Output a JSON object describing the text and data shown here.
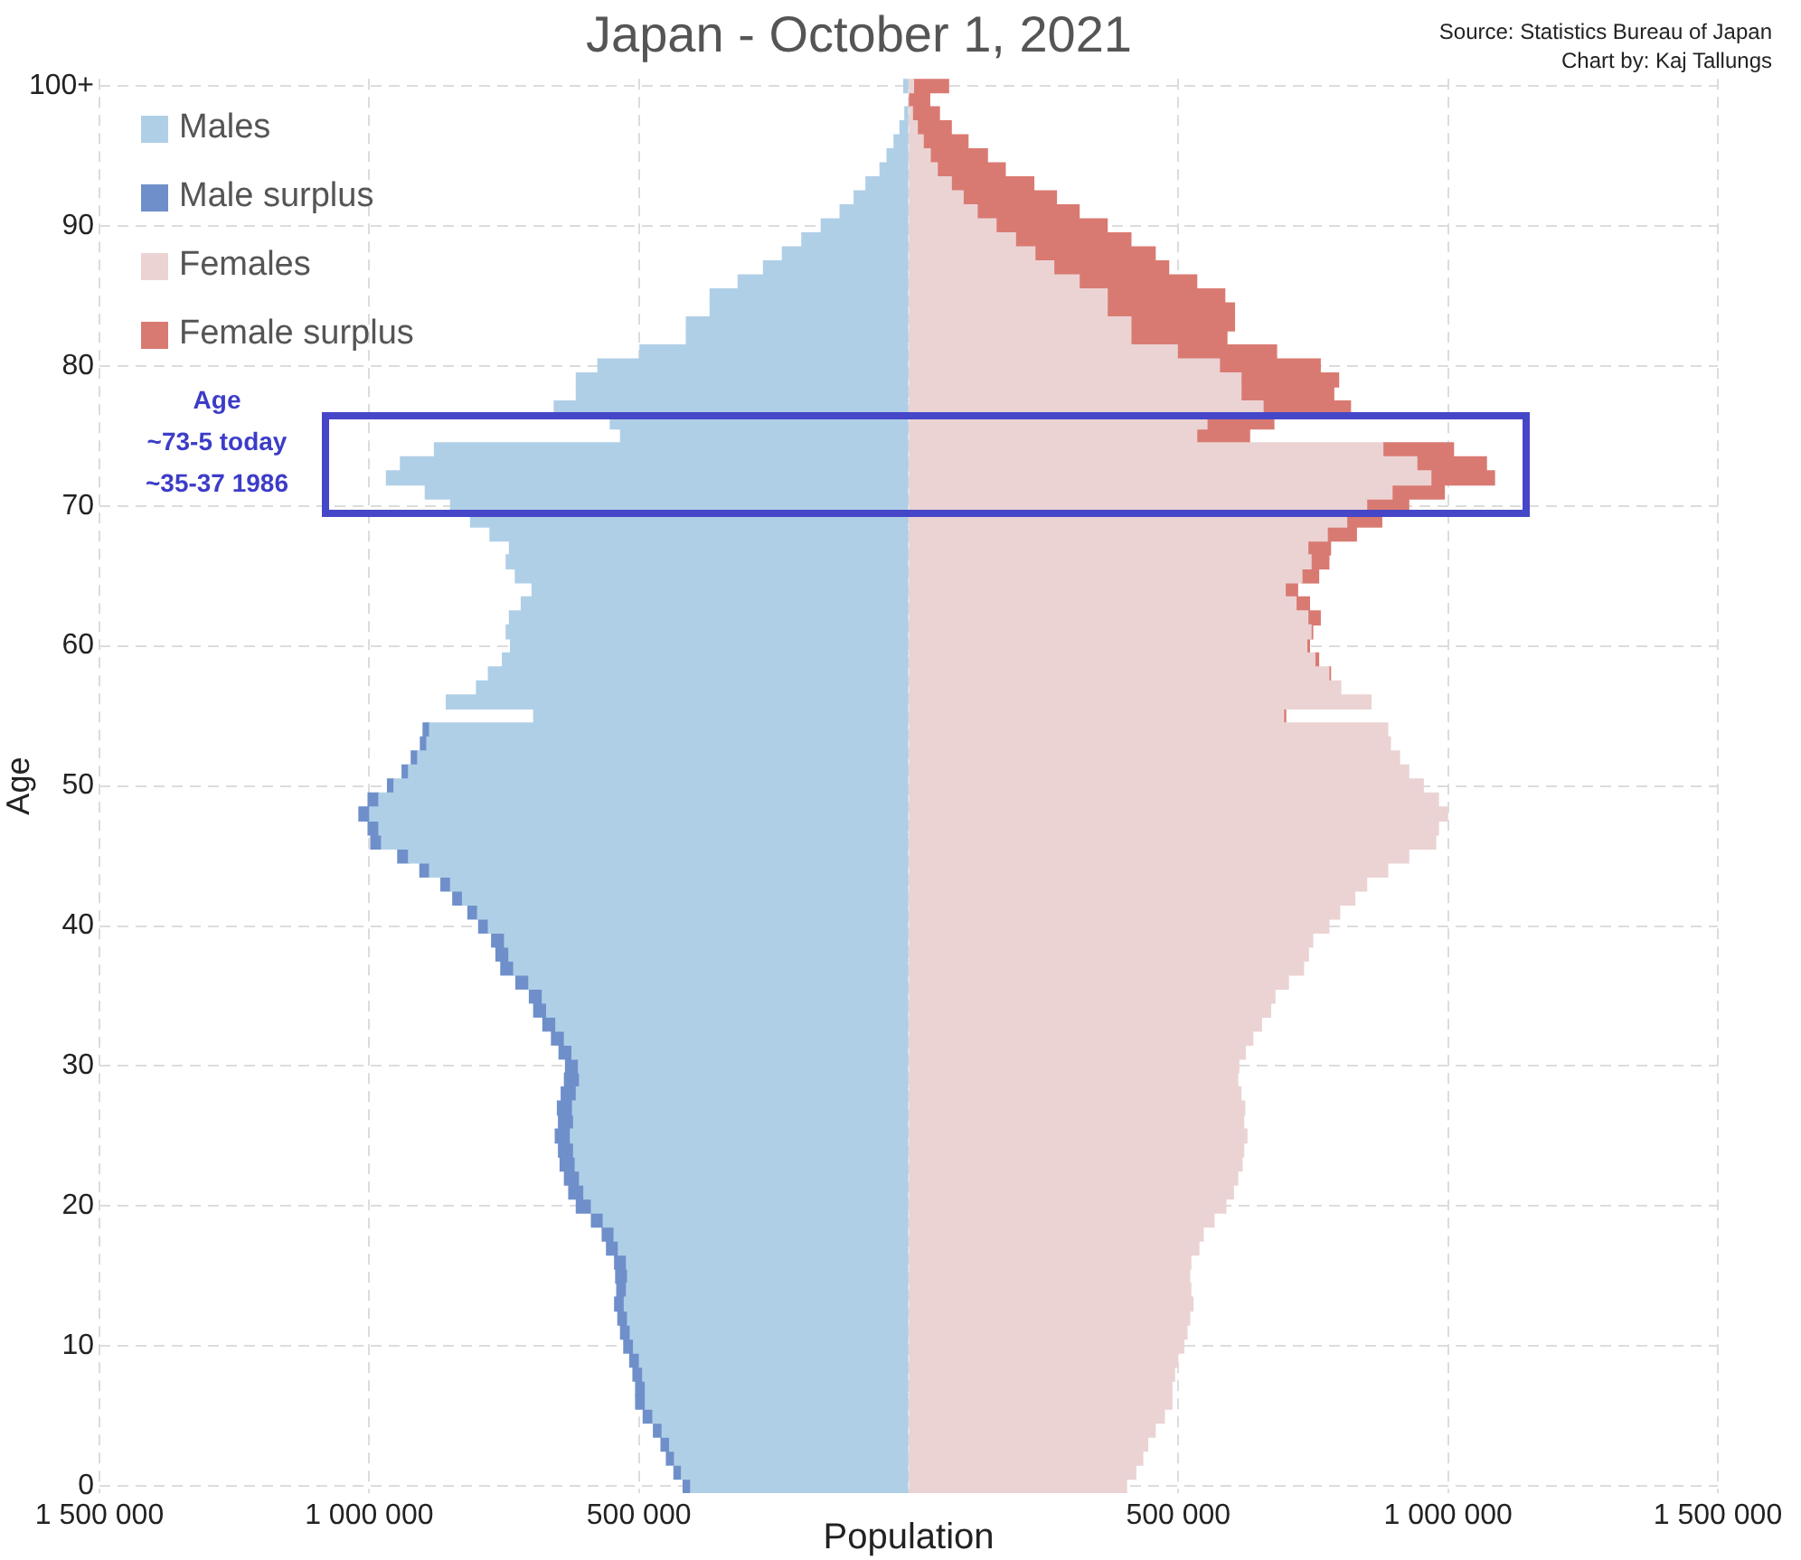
{
  "chart_data": {
    "type": "bar",
    "orientation": "horizontal",
    "stacked": true,
    "title": "Japan - October 1, 2021",
    "xlabel": "Population",
    "ylabel": "Age",
    "annotations": [
      "Source: Statistics Bureau of Japan",
      "Chart by: Kaj Tallungs",
      "Age",
      "~73-5 today",
      "~35-37 1986"
    ],
    "categories": [
      "100+",
      null,
      null,
      null,
      null,
      null,
      null,
      null,
      null,
      null,
      "90",
      null,
      null,
      null,
      null,
      null,
      null,
      null,
      null,
      null,
      "80",
      null,
      null,
      null,
      null,
      null,
      null,
      null,
      null,
      null,
      "70",
      null,
      null,
      null,
      null,
      null,
      null,
      null,
      null,
      null,
      "60",
      null,
      null,
      null,
      null,
      null,
      null,
      null,
      null,
      null,
      "50",
      null,
      null,
      null,
      null,
      null,
      null,
      null,
      null,
      null,
      "40",
      null,
      null,
      null,
      null,
      null,
      null,
      null,
      null,
      null,
      "30",
      null,
      null,
      null,
      null,
      null,
      null,
      null,
      null,
      null,
      "20",
      null,
      null,
      null,
      null,
      null,
      null,
      null,
      null,
      null,
      "10",
      null,
      null,
      null,
      null,
      null,
      null,
      null,
      null,
      null,
      "0"
    ],
    "series": [
      {
        "name": "Males",
        "color": "#afcfe7",
        "values": [
          -9000,
          null,
          -7000,
          -16000,
          -27000,
          -40000,
          -53000,
          -79000,
          -101000,
          -127000,
          -162000,
          -198000,
          -234000,
          -269000,
          -316000,
          -368000,
          -368000,
          -412000,
          -412000,
          -498000,
          -576000,
          -616000,
          -616000,
          -657000,
          -553000,
          -534000,
          -879000,
          -942000,
          -968000,
          -896000,
          -849000,
          -812000,
          -776000,
          -740000,
          -746000,
          -729000,
          -698000,
          -718000,
          -740000,
          -746000,
          -738000,
          -753000,
          -779000,
          -801000,
          -857000,
          -695000,
          -888000,
          -893000,
          -910000,
          -927000,
          -954000,
          -982000,
          -999000,
          -982000,
          -977000,
          -927000,
          -888000,
          -849000,
          -827000,
          -799000,
          -779000,
          -749000,
          -741000,
          -732000,
          -704000,
          -679000,
          -671000,
          -654000,
          -638000,
          -624000,
          -612000,
          -610000,
          -616000,
          -623000,
          -621000,
          -627000,
          -621000,
          -618000,
          -610000,
          -602000,
          -588000,
          -566000,
          -546000,
          -538000,
          -523000,
          -521000,
          -523000,
          -527000,
          -521000,
          -516000,
          -510000,
          -499000,
          -493000,
          -488000,
          -488000,
          -474000,
          -457000,
          -443000,
          -434000,
          -421000,
          -404000
        ]
      },
      {
        "name": "Male surplus",
        "color": "#6f8fca",
        "values": [
          null,
          null,
          null,
          null,
          null,
          null,
          null,
          null,
          null,
          null,
          null,
          null,
          null,
          null,
          null,
          null,
          null,
          null,
          null,
          null,
          null,
          null,
          null,
          null,
          null,
          null,
          null,
          null,
          null,
          null,
          null,
          null,
          null,
          null,
          null,
          null,
          null,
          null,
          null,
          null,
          null,
          null,
          null,
          null,
          null,
          null,
          -12000,
          -12000,
          -12000,
          -12000,
          -12000,
          -20000,
          -20000,
          -20000,
          -20000,
          -20000,
          -18000,
          -18000,
          -18000,
          -18000,
          -18000,
          -24000,
          -24000,
          -24000,
          -24000,
          -24000,
          -24000,
          -24000,
          -24000,
          -24000,
          -24000,
          -28000,
          -28000,
          -28000,
          -28000,
          -28000,
          -28000,
          -28000,
          -28000,
          -28000,
          -28000,
          -22000,
          -22000,
          -22000,
          -22000,
          -22000,
          -18000,
          -18000,
          -18000,
          -18000,
          -18000,
          -18000,
          -18000,
          -18000,
          -18000,
          -18000,
          -16000,
          -16000,
          -15000,
          -14000,
          -14000
        ]
      },
      {
        "name": "Females",
        "color": "#ebd3d3",
        "values": [
          9000,
          null,
          7000,
          16000,
          27000,
          40000,
          53000,
          79000,
          101000,
          127000,
          162000,
          198000,
          234000,
          269000,
          316000,
          368000,
          368000,
          412000,
          412000,
          498000,
          576000,
          616000,
          616000,
          657000,
          553000,
          534000,
          879000,
          942000,
          968000,
          896000,
          849000,
          812000,
          776000,
          740000,
          746000,
          729000,
          698000,
          718000,
          740000,
          746000,
          738000,
          753000,
          779000,
          801000,
          857000,
          695000,
          888000,
          893000,
          910000,
          927000,
          954000,
          982000,
          999000,
          982000,
          977000,
          927000,
          888000,
          849000,
          827000,
          799000,
          779000,
          749000,
          741000,
          732000,
          704000,
          679000,
          671000,
          654000,
          638000,
          624000,
          612000,
          610000,
          616000,
          623000,
          621000,
          627000,
          621000,
          618000,
          610000,
          602000,
          588000,
          566000,
          546000,
          538000,
          523000,
          521000,
          523000,
          527000,
          521000,
          516000,
          510000,
          499000,
          493000,
          488000,
          488000,
          474000,
          457000,
          443000,
          434000,
          421000,
          404000
        ]
      },
      {
        "name": "Female surplus",
        "color": "#d97a72",
        "values": [
          65000,
          39000,
          50000,
          63000,
          83000,
          106000,
          126000,
          153000,
          173000,
          189000,
          206000,
          214000,
          223000,
          213000,
          218000,
          218000,
          236000,
          192000,
          178000,
          184000,
          187000,
          181000,
          172000,
          162000,
          124000,
          98000,
          131000,
          129000,
          118000,
          97000,
          78000,
          65000,
          54000,
          42000,
          33000,
          31000,
          23000,
          25000,
          23000,
          3000,
          5000,
          7000,
          3000,
          null,
          null,
          4000,
          null,
          null,
          null,
          null,
          null,
          null,
          null,
          null,
          null,
          null,
          null,
          null,
          null,
          null,
          null,
          null,
          null,
          null,
          null,
          null,
          null,
          null,
          null,
          null,
          null,
          null,
          null,
          null,
          null,
          null,
          null,
          null,
          null,
          null,
          null,
          null,
          null,
          null,
          null,
          null,
          null,
          null,
          null,
          null,
          null,
          null,
          null,
          null,
          null,
          null,
          null,
          null,
          null,
          null,
          null
        ]
      }
    ],
    "xlim": [
      -1500000,
      1500000
    ],
    "xticks": [
      {
        "value": -1500000,
        "label": "1 500 000"
      },
      {
        "value": -1000000,
        "label": "1 000 000"
      },
      {
        "value": -500000,
        "label": "500 000"
      },
      {
        "value": 0,
        "label": null
      },
      {
        "value": 500000,
        "label": "500 000"
      },
      {
        "value": 1000000,
        "label": "1 000 000"
      },
      {
        "value": 1500000,
        "label": "1 500 000"
      }
    ],
    "grid": true,
    "legend": "top left"
  }
}
